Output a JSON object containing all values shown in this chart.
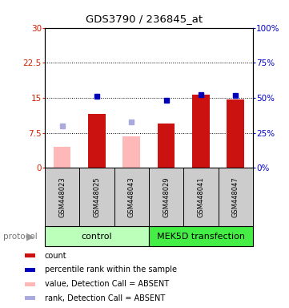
{
  "title": "GDS3790 / 236845_at",
  "samples": [
    "GSM448023",
    "GSM448025",
    "GSM448043",
    "GSM448029",
    "GSM448041",
    "GSM448047"
  ],
  "count_values": [
    null,
    11.5,
    null,
    9.5,
    15.6,
    14.6
  ],
  "count_absent_values": [
    4.5,
    null,
    6.8,
    null,
    null,
    null
  ],
  "percentile_values_pct": [
    null,
    51.0,
    null,
    48.0,
    52.0,
    51.5
  ],
  "percentile_absent_values_pct": [
    30.0,
    null,
    33.0,
    null,
    null,
    null
  ],
  "ylim_left": [
    0,
    30
  ],
  "ylim_right": [
    0,
    100
  ],
  "yticks_left": [
    0,
    7.5,
    15,
    22.5,
    30
  ],
  "yticks_right": [
    0,
    25,
    50,
    75,
    100
  ],
  "ytick_labels_left": [
    "0",
    "7.5",
    "15",
    "22.5",
    "30"
  ],
  "ytick_labels_right": [
    "0%",
    "25%",
    "50%",
    "75%",
    "100%"
  ],
  "count_color": "#cc1111",
  "count_absent_color": "#ffb8b8",
  "percentile_color": "#0000bb",
  "percentile_absent_color": "#aaaadd",
  "sample_bg": "#cccccc",
  "control_bg": "#bbffbb",
  "mek5d_bg": "#44ee44",
  "legend_items": [
    {
      "color": "#cc1111",
      "label": "count"
    },
    {
      "color": "#0000bb",
      "label": "percentile rank within the sample"
    },
    {
      "color": "#ffb8b8",
      "label": "value, Detection Call = ABSENT"
    },
    {
      "color": "#aaaadd",
      "label": "rank, Detection Call = ABSENT"
    }
  ],
  "bar_width": 0.5,
  "marker_size": 5
}
